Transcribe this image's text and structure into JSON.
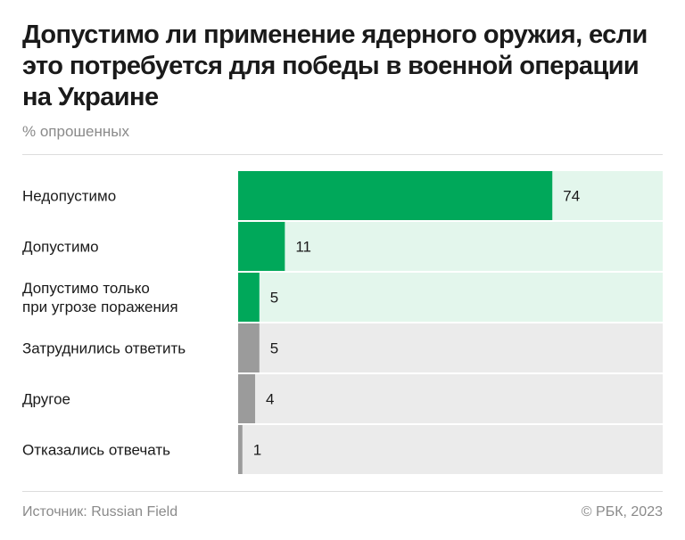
{
  "title": "Допустимо ли применение ядерного оружия, если это потребуется для победы в военной операции на Украине",
  "subtitle": "% опрошенных",
  "source": "Источник: Russian Field",
  "copyright": "© РБК, 2023",
  "colors": {
    "bar_green": "#00a85a",
    "track_green": "#e3f6ec",
    "bar_gray": "#9b9b9b",
    "track_gray": "#ebebeb"
  },
  "chart_data": {
    "type": "bar",
    "orientation": "horizontal",
    "title": "Допустимо ли применение ядерного оружия, если это потребуется для победы в военной операции на Украине",
    "unit": "% опрошенных",
    "xlim": [
      0,
      100
    ],
    "grid": false,
    "categories": [
      "Недопустимо",
      "Допустимо",
      "Допустимо только при угрозе поражения",
      "Затруднились ответить",
      "Другое",
      "Отказались отвечать"
    ],
    "category_lines": [
      [
        "Недопустимо"
      ],
      [
        "Допустимо"
      ],
      [
        "Допустимо только",
        "при угрозе поражения"
      ],
      [
        "Затруднились ответить"
      ],
      [
        "Другое"
      ],
      [
        "Отказались отвечать"
      ]
    ],
    "values": [
      74,
      11,
      5,
      5,
      4,
      1
    ],
    "groups": [
      "green",
      "green",
      "green",
      "gray",
      "gray",
      "gray"
    ]
  }
}
